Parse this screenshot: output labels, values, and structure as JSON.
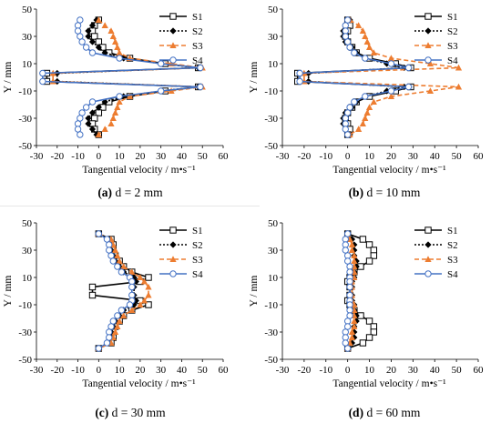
{
  "chart_data": [
    {
      "type": "line",
      "caption": {
        "letter": "(a)",
        "text": " d = 2 mm"
      },
      "xlabel": "Tangential velocity / m•s⁻¹",
      "ylabel": "Y / mm",
      "xlim": [
        -30,
        60
      ],
      "ylim": [
        -50,
        50
      ],
      "xticks": [
        -30,
        -20,
        -10,
        0,
        10,
        20,
        30,
        40,
        50,
        60
      ],
      "yticks": [
        -50,
        -30,
        -10,
        10,
        30,
        50
      ],
      "legend": "top-right",
      "y": [
        42,
        38,
        34,
        30,
        26,
        22,
        18,
        14,
        10,
        7,
        3,
        -3,
        -7,
        -10,
        -14,
        -18,
        -22,
        -26,
        -30,
        -34,
        -38,
        -42
      ],
      "series": [
        {
          "name": "S1",
          "x": [
            0,
            -2,
            -3,
            -2,
            0,
            2,
            5,
            15,
            32,
            48,
            -25,
            -25,
            48,
            32,
            15,
            5,
            2,
            0,
            -2,
            -3,
            -2,
            0
          ]
        },
        {
          "name": "S2",
          "x": [
            -1,
            -3,
            -5,
            -5,
            -3,
            0,
            3,
            12,
            30,
            48,
            -20,
            -20,
            48,
            30,
            12,
            3,
            0,
            -3,
            -5,
            -5,
            -3,
            -1
          ]
        },
        {
          "name": "S3",
          "x": [
            0,
            3,
            6,
            7,
            8,
            9,
            10,
            15,
            35,
            50,
            -22,
            -22,
            50,
            35,
            15,
            10,
            9,
            8,
            7,
            6,
            3,
            0
          ]
        },
        {
          "name": "S4",
          "x": [
            -9,
            -10,
            -10,
            -9,
            -8,
            -6,
            -3,
            10,
            30,
            49,
            -27,
            -27,
            49,
            30,
            10,
            -3,
            -6,
            -8,
            -9,
            -10,
            -10,
            -9
          ]
        }
      ]
    },
    {
      "type": "line",
      "caption": {
        "letter": "(b)",
        "text": " d = 10 mm"
      },
      "xlabel": "Tangential velocity / m•s⁻¹",
      "ylabel": "Y / mm",
      "xlim": [
        -30,
        60
      ],
      "ylim": [
        -50,
        50
      ],
      "xticks": [
        -30,
        -20,
        -10,
        0,
        10,
        20,
        30,
        40,
        50,
        60
      ],
      "yticks": [
        -50,
        -30,
        -10,
        10,
        30,
        50
      ],
      "legend": "top-right",
      "y": [
        42,
        38,
        34,
        30,
        26,
        22,
        18,
        14,
        10,
        7,
        3,
        -3,
        -7,
        -10,
        -14,
        -18,
        -22,
        -26,
        -30,
        -34,
        -38,
        -42
      ],
      "series": [
        {
          "name": "S1",
          "x": [
            0,
            1,
            0,
            -1,
            0,
            2,
            4,
            10,
            22,
            29,
            -23,
            -23,
            29,
            22,
            10,
            4,
            2,
            0,
            -1,
            0,
            1,
            0
          ]
        },
        {
          "name": "S2",
          "x": [
            1,
            -1,
            -2,
            -2,
            -1,
            2,
            4,
            8,
            18,
            26,
            -18,
            -18,
            26,
            18,
            8,
            4,
            2,
            -1,
            -2,
            -2,
            -1,
            1
          ]
        },
        {
          "name": "S3",
          "x": [
            1,
            5,
            7,
            8,
            9,
            10,
            12,
            20,
            38,
            51,
            -20,
            -20,
            51,
            38,
            20,
            12,
            10,
            9,
            8,
            7,
            5,
            1
          ]
        },
        {
          "name": "S4",
          "x": [
            0,
            -1,
            -1,
            -1,
            0,
            1,
            3,
            8,
            20,
            28,
            -22,
            -22,
            28,
            20,
            8,
            3,
            1,
            0,
            -1,
            -1,
            -1,
            0
          ]
        }
      ]
    },
    {
      "type": "line",
      "caption": {
        "letter": "(c)",
        "text": " d = 30 mm"
      },
      "xlabel": "Tangential velocity / m•s⁻¹",
      "ylabel": "Y / mm",
      "xlim": [
        -30,
        60
      ],
      "ylim": [
        -50,
        50
      ],
      "xticks": [
        -30,
        -20,
        -10,
        0,
        10,
        20,
        30,
        40,
        50,
        60
      ],
      "yticks": [
        -50,
        -30,
        -10,
        10,
        30,
        50
      ],
      "legend": "top-right",
      "y": [
        42,
        38,
        34,
        30,
        26,
        22,
        18,
        14,
        10,
        7,
        3,
        -3,
        -7,
        -10,
        -14,
        -18,
        -22,
        -26,
        -30,
        -34,
        -38,
        -42
      ],
      "series": [
        {
          "name": "S1",
          "x": [
            0,
            6,
            7,
            7,
            8,
            10,
            12,
            16,
            24,
            20,
            -3,
            -3,
            20,
            24,
            16,
            12,
            10,
            8,
            7,
            7,
            6,
            0
          ]
        },
        {
          "name": "S2",
          "x": [
            0,
            5,
            6,
            6,
            7,
            8,
            10,
            12,
            17,
            18,
            17,
            17,
            18,
            17,
            12,
            10,
            8,
            7,
            6,
            6,
            5,
            0
          ]
        },
        {
          "name": "S3",
          "x": [
            0,
            6,
            7,
            8,
            9,
            10,
            12,
            16,
            20,
            22,
            24,
            24,
            22,
            20,
            16,
            12,
            10,
            9,
            8,
            7,
            6,
            0
          ]
        },
        {
          "name": "S4",
          "x": [
            0,
            4,
            5,
            5,
            6,
            7,
            9,
            11,
            15,
            16,
            16,
            16,
            16,
            15,
            11,
            9,
            7,
            6,
            5,
            5,
            4,
            0
          ]
        }
      ]
    },
    {
      "type": "line",
      "caption": {
        "letter": "(d)",
        "text": " d = 60 mm"
      },
      "xlabel": "Tangential velocity / m•s⁻¹",
      "ylabel": "Y / mm",
      "xlim": [
        -30,
        60
      ],
      "ylim": [
        -50,
        50
      ],
      "xticks": [
        -30,
        -20,
        -10,
        0,
        10,
        20,
        30,
        40,
        50,
        60
      ],
      "yticks": [
        -50,
        -30,
        -10,
        10,
        30,
        50
      ],
      "legend": "top-right",
      "y": [
        42,
        38,
        34,
        30,
        26,
        22,
        18,
        14,
        10,
        7,
        3,
        -3,
        -7,
        -10,
        -14,
        -18,
        -22,
        -26,
        -30,
        -34,
        -38,
        -42
      ],
      "series": [
        {
          "name": "S1",
          "x": [
            0,
            7,
            10,
            12,
            12,
            10,
            6,
            3,
            1,
            0,
            1,
            1,
            0,
            1,
            3,
            6,
            10,
            12,
            12,
            10,
            7,
            0
          ]
        },
        {
          "name": "S2",
          "x": [
            0,
            2,
            3,
            3,
            3,
            4,
            4,
            3,
            3,
            2,
            2,
            2,
            2,
            3,
            3,
            4,
            4,
            3,
            3,
            3,
            2,
            0
          ]
        },
        {
          "name": "S3",
          "x": [
            0,
            1,
            2,
            2,
            3,
            3,
            3,
            3,
            3,
            2,
            2,
            2,
            2,
            3,
            3,
            3,
            3,
            3,
            2,
            2,
            1,
            0
          ]
        },
        {
          "name": "S4",
          "x": [
            0,
            -1,
            -1,
            -1,
            0,
            0,
            1,
            1,
            1,
            1,
            1,
            1,
            1,
            1,
            1,
            1,
            0,
            0,
            -1,
            -1,
            -1,
            0
          ]
        }
      ]
    }
  ],
  "series_style": {
    "S1": {
      "color": "#000000",
      "dash": "solid",
      "marker": "open-square"
    },
    "S2": {
      "color": "#000000",
      "dash": "dotted",
      "marker": "filled-diamond"
    },
    "S3": {
      "color": "#ED7D31",
      "dash": "dashed",
      "marker": "filled-triangle"
    },
    "S4": {
      "color": "#4472C4",
      "dash": "solid",
      "marker": "open-circle"
    }
  }
}
